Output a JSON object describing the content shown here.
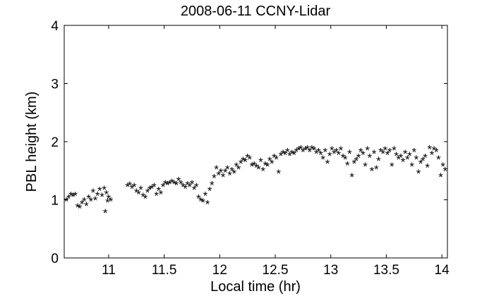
{
  "chart_data": {
    "type": "scatter",
    "title": "2008-06-11 CCNY-Lidar",
    "xlabel": "Local time (hr)",
    "ylabel": "PBL height (km)",
    "xlim": [
      10.6,
      14.05
    ],
    "ylim": [
      0,
      4
    ],
    "x_ticks": [
      11,
      11.5,
      12,
      12.5,
      13,
      13.5,
      14
    ],
    "y_ticks": [
      0,
      1,
      2,
      3,
      4
    ],
    "x_tick_labels": [
      "11",
      "11.5",
      "12",
      "12.5",
      "13",
      "13.5",
      "14"
    ],
    "y_tick_labels": [
      "0",
      "1",
      "2",
      "3",
      "4"
    ],
    "marker": "*",
    "marker_color": "#000000",
    "grid": false,
    "series": [
      {
        "points": [
          [
            10.62,
            1.0
          ],
          [
            10.64,
            1.05
          ],
          [
            10.66,
            1.1
          ],
          [
            10.68,
            1.08
          ],
          [
            10.7,
            1.1
          ],
          [
            10.72,
            0.9
          ],
          [
            10.74,
            0.88
          ],
          [
            10.76,
            0.95
          ],
          [
            10.78,
            1.0
          ],
          [
            10.8,
            0.92
          ],
          [
            10.82,
            1.05
          ],
          [
            10.84,
            1.0
          ],
          [
            10.86,
            1.15
          ],
          [
            10.88,
            1.02
          ],
          [
            10.9,
            1.1
          ],
          [
            10.92,
            1.18
          ],
          [
            10.94,
            1.08
          ],
          [
            10.96,
            1.2
          ],
          [
            10.98,
            1.12
          ],
          [
            11.0,
            1.05
          ],
          [
            10.99,
            0.98
          ],
          [
            10.97,
            0.8
          ],
          [
            11.02,
            1.0
          ],
          [
            11.17,
            1.25
          ],
          [
            11.19,
            1.27
          ],
          [
            11.21,
            1.22
          ],
          [
            11.23,
            1.25
          ],
          [
            11.25,
            1.15
          ],
          [
            11.27,
            1.12
          ],
          [
            11.29,
            1.2
          ],
          [
            11.31,
            1.08
          ],
          [
            11.33,
            1.05
          ],
          [
            11.35,
            1.15
          ],
          [
            11.37,
            1.2
          ],
          [
            11.39,
            1.22
          ],
          [
            11.41,
            1.25
          ],
          [
            11.43,
            1.1
          ],
          [
            11.45,
            1.18
          ],
          [
            11.47,
            1.12
          ],
          [
            11.49,
            1.25
          ],
          [
            11.51,
            1.3
          ],
          [
            11.53,
            1.28
          ],
          [
            11.55,
            1.3
          ],
          [
            11.57,
            1.32
          ],
          [
            11.59,
            1.3
          ],
          [
            11.61,
            1.28
          ],
          [
            11.63,
            1.35
          ],
          [
            11.65,
            1.3
          ],
          [
            11.67,
            1.25
          ],
          [
            11.69,
            1.22
          ],
          [
            11.71,
            1.28
          ],
          [
            11.73,
            1.25
          ],
          [
            11.75,
            1.3
          ],
          [
            11.77,
            1.2
          ],
          [
            11.79,
            1.25
          ],
          [
            11.81,
            1.05
          ],
          [
            11.83,
            1.0
          ],
          [
            11.85,
            0.98
          ],
          [
            11.87,
            1.1
          ],
          [
            11.89,
            0.95
          ],
          [
            11.91,
            1.18
          ],
          [
            11.93,
            1.28
          ],
          [
            11.95,
            1.4
          ],
          [
            11.97,
            1.55
          ],
          [
            11.99,
            1.45
          ],
          [
            12.01,
            1.5
          ],
          [
            12.03,
            1.42
          ],
          [
            12.05,
            1.5
          ],
          [
            12.07,
            1.55
          ],
          [
            12.09,
            1.45
          ],
          [
            12.11,
            1.52
          ],
          [
            12.13,
            1.48
          ],
          [
            12.15,
            1.6
          ],
          [
            12.17,
            1.55
          ],
          [
            12.19,
            1.65
          ],
          [
            12.21,
            1.7
          ],
          [
            12.23,
            1.68
          ],
          [
            12.25,
            1.75
          ],
          [
            12.27,
            1.72
          ],
          [
            12.29,
            1.6
          ],
          [
            12.31,
            1.62
          ],
          [
            12.33,
            1.58
          ],
          [
            12.35,
            1.55
          ],
          [
            12.37,
            1.68
          ],
          [
            12.39,
            1.52
          ],
          [
            12.41,
            1.62
          ],
          [
            12.43,
            1.6
          ],
          [
            12.45,
            1.7
          ],
          [
            12.47,
            1.65
          ],
          [
            12.49,
            1.75
          ],
          [
            12.51,
            1.72
          ],
          [
            12.53,
            1.48
          ],
          [
            12.55,
            1.78
          ],
          [
            12.57,
            1.82
          ],
          [
            12.59,
            1.8
          ],
          [
            12.61,
            1.85
          ],
          [
            12.63,
            1.78
          ],
          [
            12.65,
            1.82
          ],
          [
            12.67,
            1.8
          ],
          [
            12.69,
            1.85
          ],
          [
            12.71,
            1.88
          ],
          [
            12.73,
            1.9
          ],
          [
            12.75,
            1.85
          ],
          [
            12.77,
            1.88
          ],
          [
            12.79,
            1.9
          ],
          [
            12.81,
            1.85
          ],
          [
            12.83,
            1.9
          ],
          [
            12.85,
            1.88
          ],
          [
            12.87,
            1.82
          ],
          [
            12.89,
            1.85
          ],
          [
            12.91,
            1.8
          ],
          [
            12.93,
            1.72
          ],
          [
            12.95,
            1.85
          ],
          [
            12.97,
            1.65
          ],
          [
            12.99,
            1.78
          ],
          [
            13.01,
            1.88
          ],
          [
            13.03,
            1.82
          ],
          [
            13.05,
            1.85
          ],
          [
            13.07,
            1.8
          ],
          [
            13.09,
            1.88
          ],
          [
            13.11,
            1.75
          ],
          [
            13.13,
            1.72
          ],
          [
            13.15,
            1.62
          ],
          [
            13.17,
            1.82
          ],
          [
            13.19,
            1.42
          ],
          [
            13.21,
            1.65
          ],
          [
            13.23,
            1.7
          ],
          [
            13.25,
            1.75
          ],
          [
            13.27,
            1.85
          ],
          [
            13.29,
            1.8
          ],
          [
            13.31,
            1.6
          ],
          [
            13.33,
            1.88
          ],
          [
            13.35,
            1.75
          ],
          [
            13.37,
            1.52
          ],
          [
            13.39,
            1.82
          ],
          [
            13.41,
            1.55
          ],
          [
            13.43,
            1.7
          ],
          [
            13.45,
            1.85
          ],
          [
            13.47,
            1.82
          ],
          [
            13.49,
            1.88
          ],
          [
            13.51,
            1.8
          ],
          [
            13.53,
            1.85
          ],
          [
            13.55,
            1.6
          ],
          [
            13.57,
            1.88
          ],
          [
            13.59,
            1.78
          ],
          [
            13.61,
            1.72
          ],
          [
            13.63,
            1.75
          ],
          [
            13.65,
            1.68
          ],
          [
            13.67,
            1.82
          ],
          [
            13.69,
            1.72
          ],
          [
            13.71,
            1.78
          ],
          [
            13.73,
            1.6
          ],
          [
            13.75,
            1.85
          ],
          [
            13.77,
            1.72
          ],
          [
            13.79,
            1.48
          ],
          [
            13.81,
            1.65
          ],
          [
            13.83,
            1.7
          ],
          [
            13.85,
            1.75
          ],
          [
            13.87,
            1.58
          ],
          [
            13.89,
            1.9
          ],
          [
            13.91,
            1.8
          ],
          [
            13.93,
            1.88
          ],
          [
            13.95,
            1.85
          ],
          [
            13.97,
            1.72
          ],
          [
            13.99,
            1.42
          ],
          [
            14.01,
            1.6
          ],
          [
            14.03,
            1.52
          ]
        ]
      }
    ]
  }
}
